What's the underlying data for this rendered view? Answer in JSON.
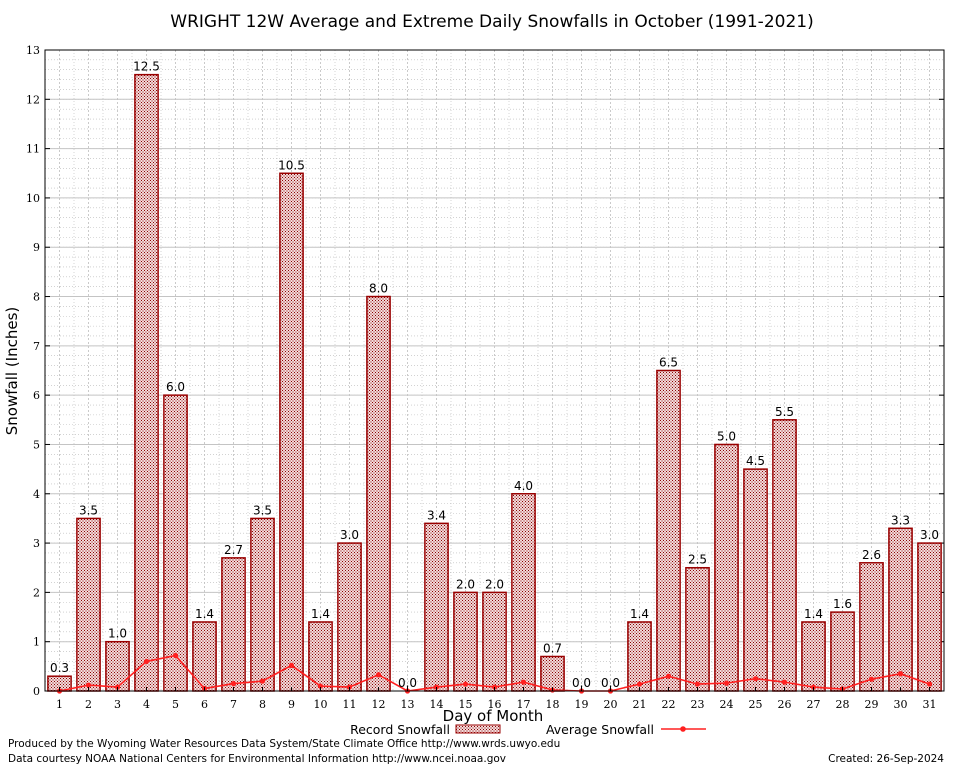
{
  "chart_data": {
    "type": "bar",
    "title": "WRIGHT 12W Average and Extreme Daily Snowfalls in October (1991-2021)",
    "xlabel": "Day of Month",
    "ylabel": "Snowfall (Inches)",
    "ylim": [
      0,
      13
    ],
    "yticks": [
      "0",
      "1",
      "2",
      "3",
      "4",
      "5",
      "6",
      "7",
      "8",
      "9",
      "10",
      "11",
      "12",
      "13"
    ],
    "categories": [
      "1",
      "2",
      "3",
      "4",
      "5",
      "6",
      "7",
      "8",
      "9",
      "10",
      "11",
      "12",
      "13",
      "14",
      "15",
      "16",
      "17",
      "18",
      "19",
      "20",
      "21",
      "22",
      "23",
      "24",
      "25",
      "26",
      "27",
      "28",
      "29",
      "30",
      "31"
    ],
    "series": [
      {
        "name": "Record Snowfall",
        "type": "bar",
        "color": "#990000",
        "values": [
          0.3,
          3.5,
          1.0,
          12.5,
          6.0,
          1.4,
          2.7,
          3.5,
          10.5,
          1.4,
          3.0,
          8.0,
          0.0,
          3.4,
          2.0,
          2.0,
          4.0,
          0.7,
          0.0,
          0.0,
          1.4,
          6.5,
          2.5,
          5.0,
          4.5,
          5.5,
          1.4,
          1.6,
          2.6,
          3.3,
          3.0
        ],
        "labels": [
          "0.3",
          "3.5",
          "1.0",
          "12.5",
          "6.0",
          "1.4",
          "2.7",
          "3.5",
          "10.5",
          "1.4",
          "3.0",
          "8.0",
          "0.0",
          "3.4",
          "2.0",
          "2.0",
          "4.0",
          "0.7",
          "0.0",
          "0.0",
          "1.4",
          "6.5",
          "2.5",
          "5.0",
          "4.5",
          "5.5",
          "1.4",
          "1.6",
          "2.6",
          "3.3",
          "3.0"
        ]
      },
      {
        "name": "Average Snowfall",
        "type": "line",
        "color": "#ff2020",
        "values": [
          0.0,
          0.12,
          0.08,
          0.6,
          0.72,
          0.05,
          0.15,
          0.2,
          0.52,
          0.1,
          0.08,
          0.33,
          0.0,
          0.08,
          0.14,
          0.08,
          0.18,
          0.02,
          0.0,
          0.0,
          0.14,
          0.3,
          0.14,
          0.16,
          0.25,
          0.18,
          0.08,
          0.04,
          0.24,
          0.35,
          0.14
        ]
      }
    ],
    "grid": true,
    "legend": "bottom-center"
  },
  "footer": {
    "credit_line1": "Produced by the Wyoming Water Resources Data System/State Climate Office http://www.wrds.uwyo.edu",
    "credit_line2": "Data courtesy NOAA National Centers for Environmental Information http://www.ncei.noaa.gov",
    "created": "Created:  26-Sep-2024"
  }
}
